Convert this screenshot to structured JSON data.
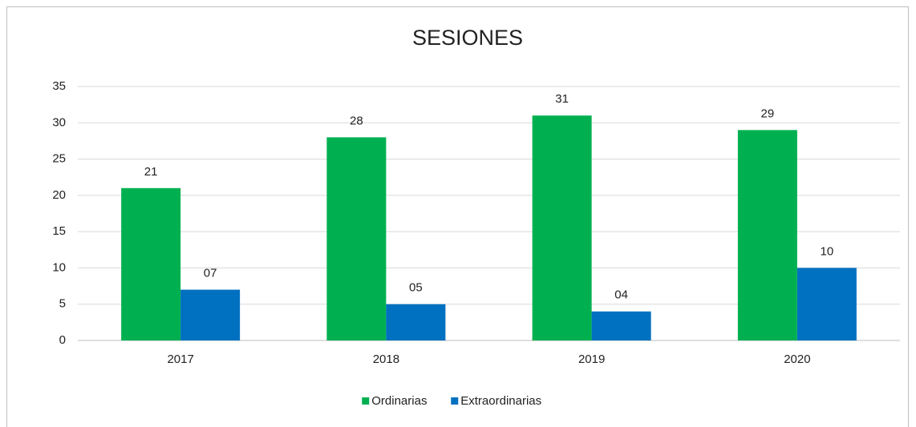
{
  "chart_data": {
    "type": "bar",
    "title": "SESIONES",
    "categories": [
      "2017",
      "2018",
      "2019",
      "2020"
    ],
    "series": [
      {
        "name": "Ordinarias",
        "color": "#00b050",
        "values": [
          21,
          28,
          31,
          29
        ]
      },
      {
        "name": "Extraordinarias",
        "color": "#0070c0",
        "values": [
          7,
          5,
          4,
          10
        ],
        "value_labels": [
          "07",
          "05",
          "04",
          "10"
        ]
      }
    ],
    "ylim": [
      0,
      35
    ],
    "yticks": [
      0,
      5,
      10,
      15,
      20,
      25,
      30,
      35
    ],
    "grid": true,
    "legend": "bottom"
  }
}
